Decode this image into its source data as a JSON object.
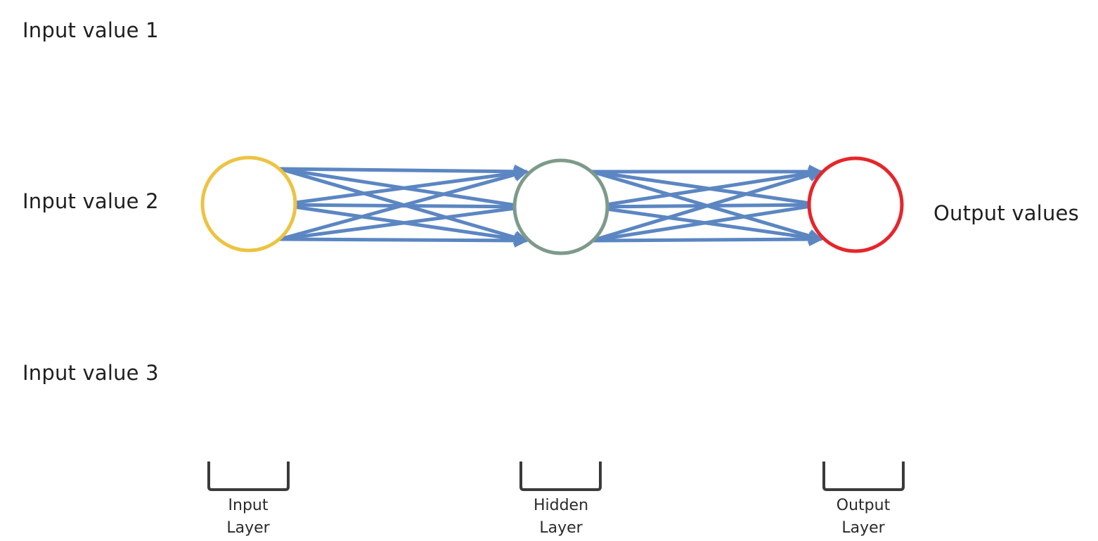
{
  "inputs": [
    {
      "label": "Input value 1"
    },
    {
      "label": "Input value 2"
    },
    {
      "label": "Input value 3"
    }
  ],
  "output_label": "Output values",
  "layers": [
    {
      "line1": "Input",
      "line2": "Layer",
      "color": "#ECC342"
    },
    {
      "line1": "Hidden",
      "line2": "Layer",
      "color": "#7E9A8A"
    },
    {
      "line1": "Output",
      "line2": "Layer",
      "color": "#E5262B"
    }
  ],
  "colors": {
    "arrow": "#5B86C2",
    "bracket": "#3a3a3a"
  }
}
